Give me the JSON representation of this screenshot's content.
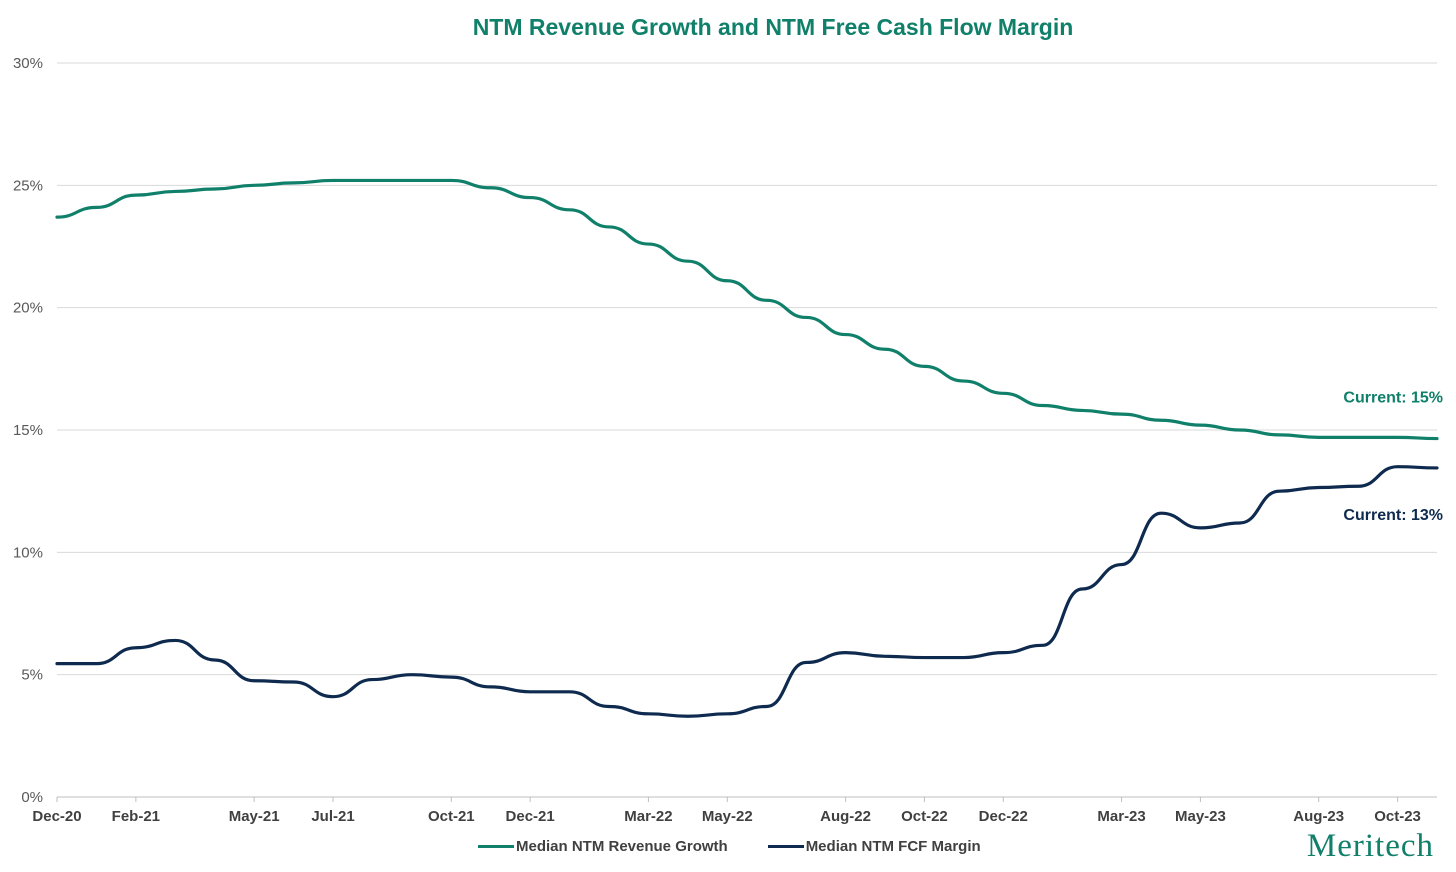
{
  "brand": "Meritech",
  "colors": {
    "green": "#10806A",
    "navy": "#0E2A4F",
    "grid": "#D9D9D9"
  },
  "chart_data": {
    "type": "line",
    "title": "NTM Revenue Growth and NTM Free Cash Flow Margin",
    "xlabel": "",
    "ylabel": "",
    "ylim": [
      0,
      30
    ],
    "yticks": [
      "0%",
      "5%",
      "10%",
      "15%",
      "20%",
      "25%",
      "30%"
    ],
    "x_tick_labels": [
      "Dec-20",
      "Feb-21",
      "May-21",
      "Jul-21",
      "Oct-21",
      "Dec-21",
      "Mar-22",
      "May-22",
      "Aug-22",
      "Oct-22",
      "Dec-22",
      "Mar-23",
      "May-23",
      "Aug-23",
      "Oct-23"
    ],
    "x": [
      "Dec-20",
      "Jan-21",
      "Feb-21",
      "Mar-21",
      "Apr-21",
      "May-21",
      "Jun-21",
      "Jul-21",
      "Aug-21",
      "Sep-21",
      "Oct-21",
      "Nov-21",
      "Dec-21",
      "Jan-22",
      "Feb-22",
      "Mar-22",
      "Apr-22",
      "May-22",
      "Jun-22",
      "Jul-22",
      "Aug-22",
      "Sep-22",
      "Oct-22",
      "Nov-22",
      "Dec-22",
      "Jan-23",
      "Feb-23",
      "Mar-23",
      "Apr-23",
      "May-23",
      "Jun-23",
      "Jul-23",
      "Aug-23",
      "Sep-23",
      "Oct-23",
      "Nov-23"
    ],
    "grid": true,
    "legend_position": "bottom",
    "series": [
      {
        "name": "Median NTM Revenue Growth",
        "color": "#10806A",
        "values": [
          23.7,
          24.1,
          24.6,
          24.75,
          24.85,
          25.0,
          25.1,
          25.2,
          25.2,
          25.2,
          25.2,
          24.9,
          24.5,
          24.0,
          23.3,
          22.6,
          21.9,
          21.1,
          20.3,
          19.6,
          18.9,
          18.3,
          17.6,
          17.0,
          16.5,
          16.0,
          15.8,
          15.65,
          15.4,
          15.2,
          15.0,
          14.8,
          14.7,
          14.7,
          14.7,
          14.65
        ]
      },
      {
        "name": "Median NTM FCF Margin",
        "color": "#0E2A4F",
        "values": [
          5.45,
          5.45,
          6.1,
          6.4,
          5.6,
          4.75,
          4.7,
          4.1,
          4.8,
          5.0,
          4.9,
          4.5,
          4.3,
          4.3,
          3.7,
          3.4,
          3.3,
          3.4,
          3.7,
          5.5,
          5.9,
          5.75,
          5.7,
          5.7,
          5.9,
          6.2,
          8.5,
          9.5,
          11.6,
          11.0,
          11.2,
          12.5,
          12.65,
          12.7,
          13.5,
          13.45
        ]
      }
    ],
    "annotations": [
      {
        "text": "Current: 15%",
        "series": 0
      },
      {
        "text": "Current: 13%",
        "series": 1
      }
    ]
  }
}
